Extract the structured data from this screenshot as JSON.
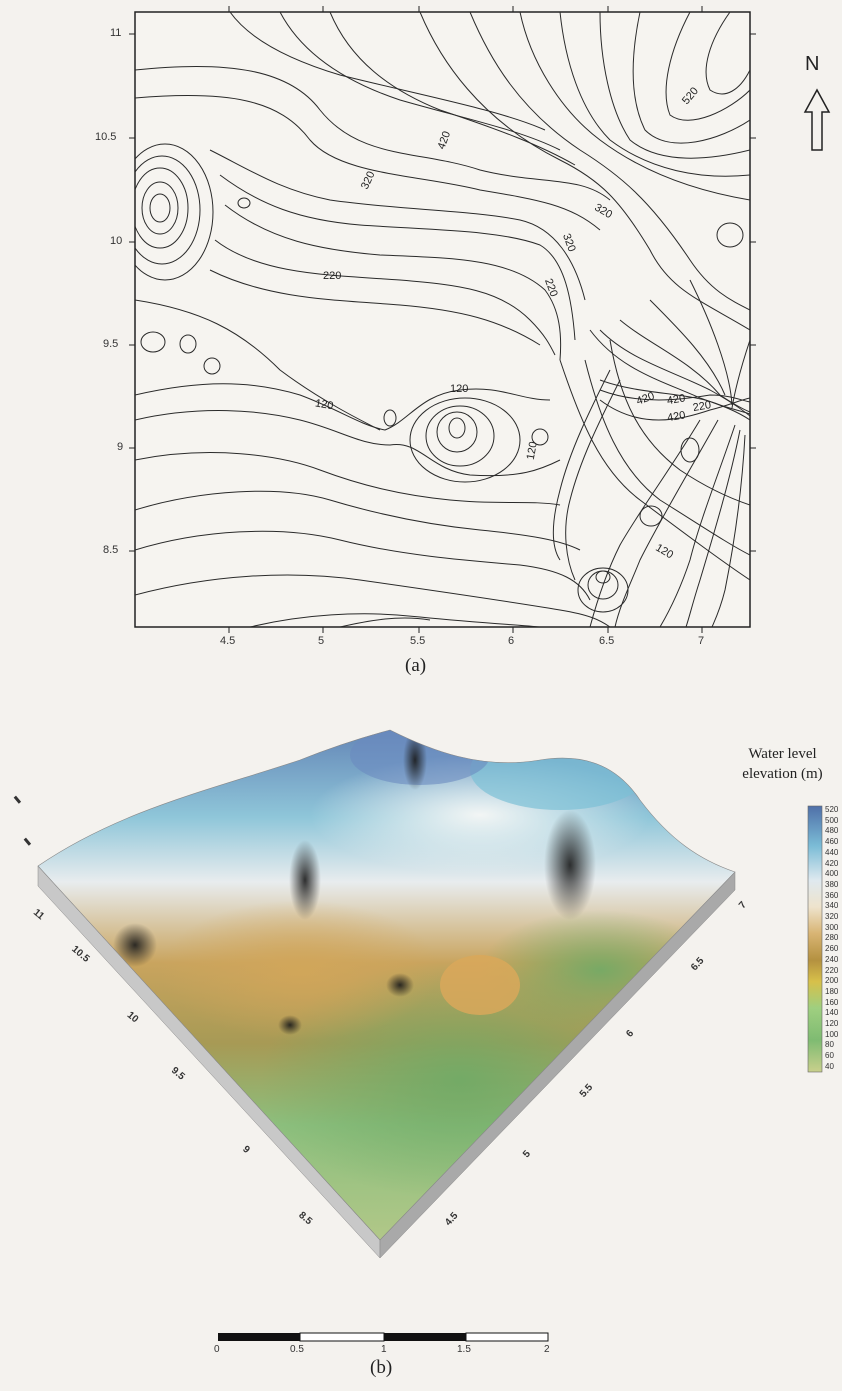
{
  "figure_a": {
    "caption": "(a)",
    "x_ticks": [
      "4.5",
      "5",
      "5.5",
      "6",
      "6.5",
      "7"
    ],
    "y_ticks": [
      "11",
      "10.5",
      "10",
      "9.5",
      "9",
      "8.5"
    ],
    "contour_labels": [
      "520",
      "420",
      "320",
      "320",
      "320",
      "220",
      "220",
      "120",
      "120",
      "120",
      "120",
      "420",
      "420",
      "420",
      "220"
    ],
    "north_label": "N"
  },
  "figure_b": {
    "caption": "(b)",
    "legend_title_line1": "Water level",
    "legend_title_line2": "elevation (m)",
    "legend_values": [
      "520",
      "500",
      "480",
      "460",
      "440",
      "420",
      "400",
      "380",
      "360",
      "340",
      "320",
      "300",
      "280",
      "260",
      "240",
      "220",
      "200",
      "180",
      "160",
      "140",
      "120",
      "100",
      "80",
      "60",
      "40"
    ],
    "axis_left_ticks": [
      "11",
      "10.5",
      "10",
      "9.5",
      "9",
      "8.5"
    ],
    "axis_right_ticks": [
      "7",
      "6.5",
      "6",
      "5.5",
      "5",
      "4.5"
    ],
    "scale_bar_labels": [
      "0",
      "0.5",
      "1",
      "1.5",
      "2"
    ]
  }
}
